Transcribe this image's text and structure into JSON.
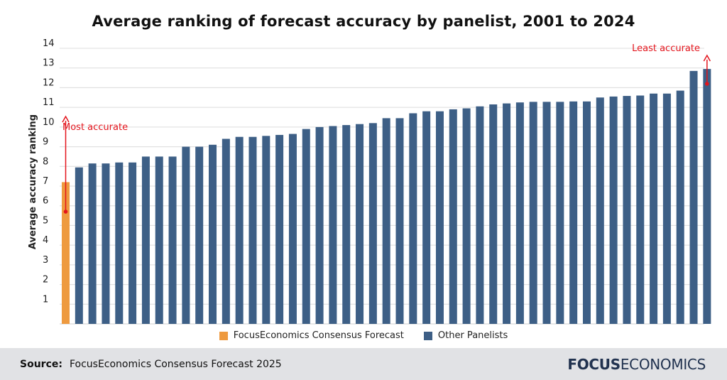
{
  "chart_data": {
    "type": "bar",
    "title": "Average ranking of forecast accuracy by panelist, 2001 to 2024",
    "ylabel": "Average accuracy ranking",
    "ylim": [
      0,
      14
    ],
    "yticks": [
      1,
      2,
      3,
      4,
      5,
      6,
      7,
      8,
      9,
      10,
      11,
      12,
      13,
      14
    ],
    "grid": true,
    "legend_position": "bottom",
    "series": [
      {
        "name": "FocusEconomics Consensus Forecast",
        "color": "#ee9a3f",
        "values": [
          7.2
        ]
      },
      {
        "name": "Other Panelists",
        "color": "#3d5f86",
        "values": [
          7.95,
          8.15,
          8.15,
          8.2,
          8.2,
          8.5,
          8.5,
          8.5,
          9.0,
          9.0,
          9.1,
          9.4,
          9.5,
          9.5,
          9.55,
          9.6,
          9.65,
          9.9,
          10.0,
          10.05,
          10.1,
          10.15,
          10.2,
          10.45,
          10.45,
          10.7,
          10.8,
          10.8,
          10.9,
          10.95,
          11.05,
          11.15,
          11.2,
          11.25,
          11.28,
          11.28,
          11.28,
          11.3,
          11.3,
          11.5,
          11.55,
          11.58,
          11.6,
          11.7,
          11.7,
          11.85,
          12.85,
          12.95
        ]
      }
    ],
    "annotations": [
      {
        "text": "Most accurate",
        "color": "#e3141c"
      },
      {
        "text": "Least accurate",
        "color": "#e3141c"
      }
    ]
  },
  "footer": {
    "source_label": "Source:",
    "source_text": "FocusEconomics Consensus Forecast 2025",
    "logo_bold": "FOCUS",
    "logo_regular": "ECONOMICS"
  }
}
